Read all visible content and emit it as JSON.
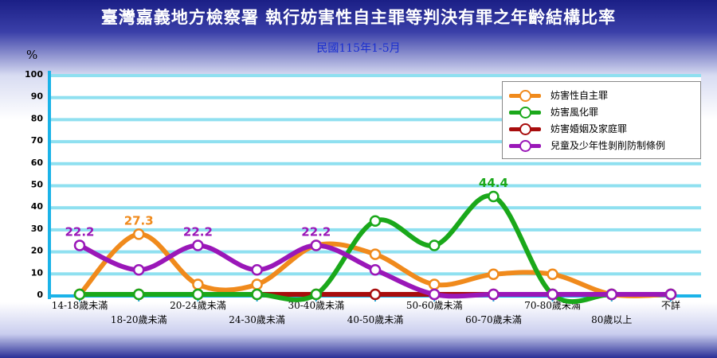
{
  "title": "臺灣嘉義地方檢察署 執行妨害性自主罪等判決有罪之年齡結構比率",
  "subtitle": "民國115年1-5月",
  "unit": "%",
  "chart_data": {
    "type": "line",
    "title": "臺灣嘉義地方檢察署 執行妨害性自主罪等判決有罪之年齡結構比率",
    "subtitle": "民國115年1-5月",
    "ylabel": "%",
    "ylim": [
      0,
      100
    ],
    "yticks": [
      0,
      10,
      20,
      30,
      40,
      50,
      60,
      70,
      80,
      90,
      100
    ],
    "grid": true,
    "legend_position": "top-right",
    "categories": [
      "14-18歲未滿",
      "18-20歲未滿",
      "20-24歲未滿",
      "24-30歲未滿",
      "30-40歲未滿",
      "40-50歲未滿",
      "50-60歲未滿",
      "60-70歲未滿",
      "70-80歲未滿",
      "80歲以上",
      "不詳"
    ],
    "series": [
      {
        "name": "妨害性自主罪",
        "color": "#f08a1c",
        "values": [
          0,
          27.3,
          4.5,
          4.5,
          22.2,
          18.2,
          4.5,
          9.1,
          9.1,
          0,
          0
        ],
        "labels": {
          "1": "27.3"
        }
      },
      {
        "name": "妨害風化罪",
        "color": "#1aa81a",
        "values": [
          0,
          0,
          0,
          0,
          0,
          33.3,
          22.2,
          44.4,
          0,
          0,
          0
        ],
        "labels": {
          "7": "44.4"
        }
      },
      {
        "name": "妨害婚姻及家庭罪",
        "color": "#a80d0d",
        "values": [
          0,
          0,
          0,
          0,
          0,
          0,
          0,
          0,
          0,
          0,
          0
        ],
        "labels": {}
      },
      {
        "name": "兒童及少年性剝削防制條例",
        "color": "#9a17b8",
        "values": [
          22.2,
          11.1,
          22.2,
          11.1,
          22.2,
          11.1,
          0,
          0,
          0,
          0,
          0
        ],
        "labels": {
          "0": "22.2",
          "2": "22.2",
          "4": "22.2"
        }
      }
    ]
  }
}
